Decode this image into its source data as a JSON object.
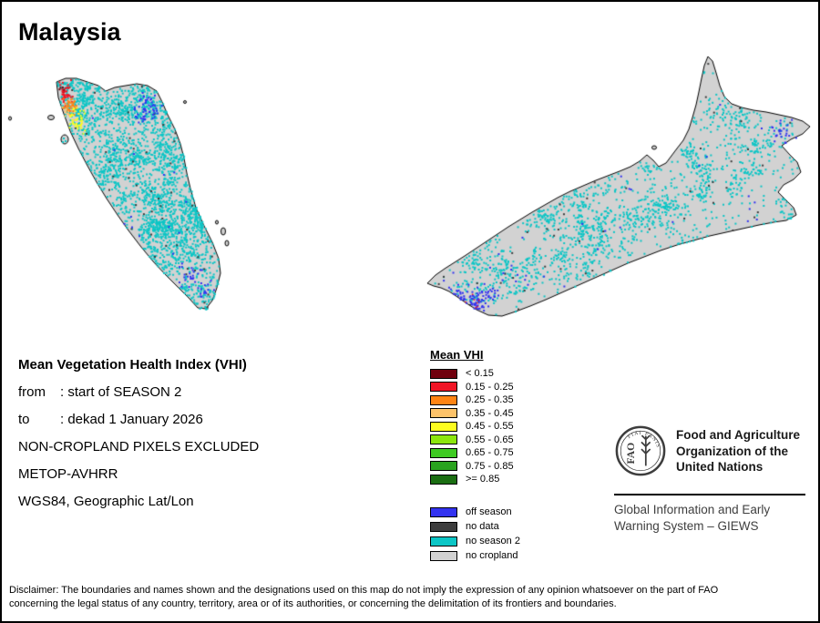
{
  "title": "Malaysia",
  "metadata": {
    "heading": "Mean Vegetation Health Index (VHI)",
    "from_label": "from",
    "from_value": ": start of SEASON 2",
    "to_label": "to",
    "to_value": ": dekad 1 January 2026",
    "exclusion": "NON-CROPLAND PIXELS EXCLUDED",
    "sensor": "METOP-AVHRR",
    "projection": "WGS84, Geographic Lat/Lon"
  },
  "legend": {
    "title": "Mean VHI",
    "classes": [
      {
        "label": "< 0.15",
        "color": "#70000d"
      },
      {
        "label": "0.15 - 0.25",
        "color": "#f01525"
      },
      {
        "label": "0.25 - 0.35",
        "color": "#ff8414"
      },
      {
        "label": "0.35 - 0.45",
        "color": "#fdc36a"
      },
      {
        "label": "0.45 - 0.55",
        "color": "#fdfd20"
      },
      {
        "label": "0.55 - 0.65",
        "color": "#8ce60e"
      },
      {
        "label": "0.65 - 0.75",
        "color": "#3ecb22"
      },
      {
        "label": "0.75 - 0.85",
        "color": "#2aa31f"
      },
      {
        "label": ">= 0.85",
        "color": "#1b6e12"
      }
    ],
    "extra": [
      {
        "label": "off season",
        "color": "#3333f0"
      },
      {
        "label": "no data",
        "color": "#3d3d3d"
      },
      {
        "label": "no season 2",
        "color": "#0cc6c6"
      },
      {
        "label": "no cropland",
        "color": "#d2d2d2"
      }
    ]
  },
  "fao": {
    "logo_letters": "FAO",
    "logo_motto": "FIAT PANIS",
    "org_name": "Food and Agriculture\nOrganization of the\nUnited Nations",
    "giews": "Global Information and Early\nWarning System – GIEWS"
  },
  "disclaimer": "Disclaimer: The boundaries and names shown and the designations used on this map do not imply the expression of any opinion whatsoever on the part of FAO\nconcerning the legal status of any country, territory, area or of its authorities, or concerning the delimitation of its frontiers and boundaries."
}
